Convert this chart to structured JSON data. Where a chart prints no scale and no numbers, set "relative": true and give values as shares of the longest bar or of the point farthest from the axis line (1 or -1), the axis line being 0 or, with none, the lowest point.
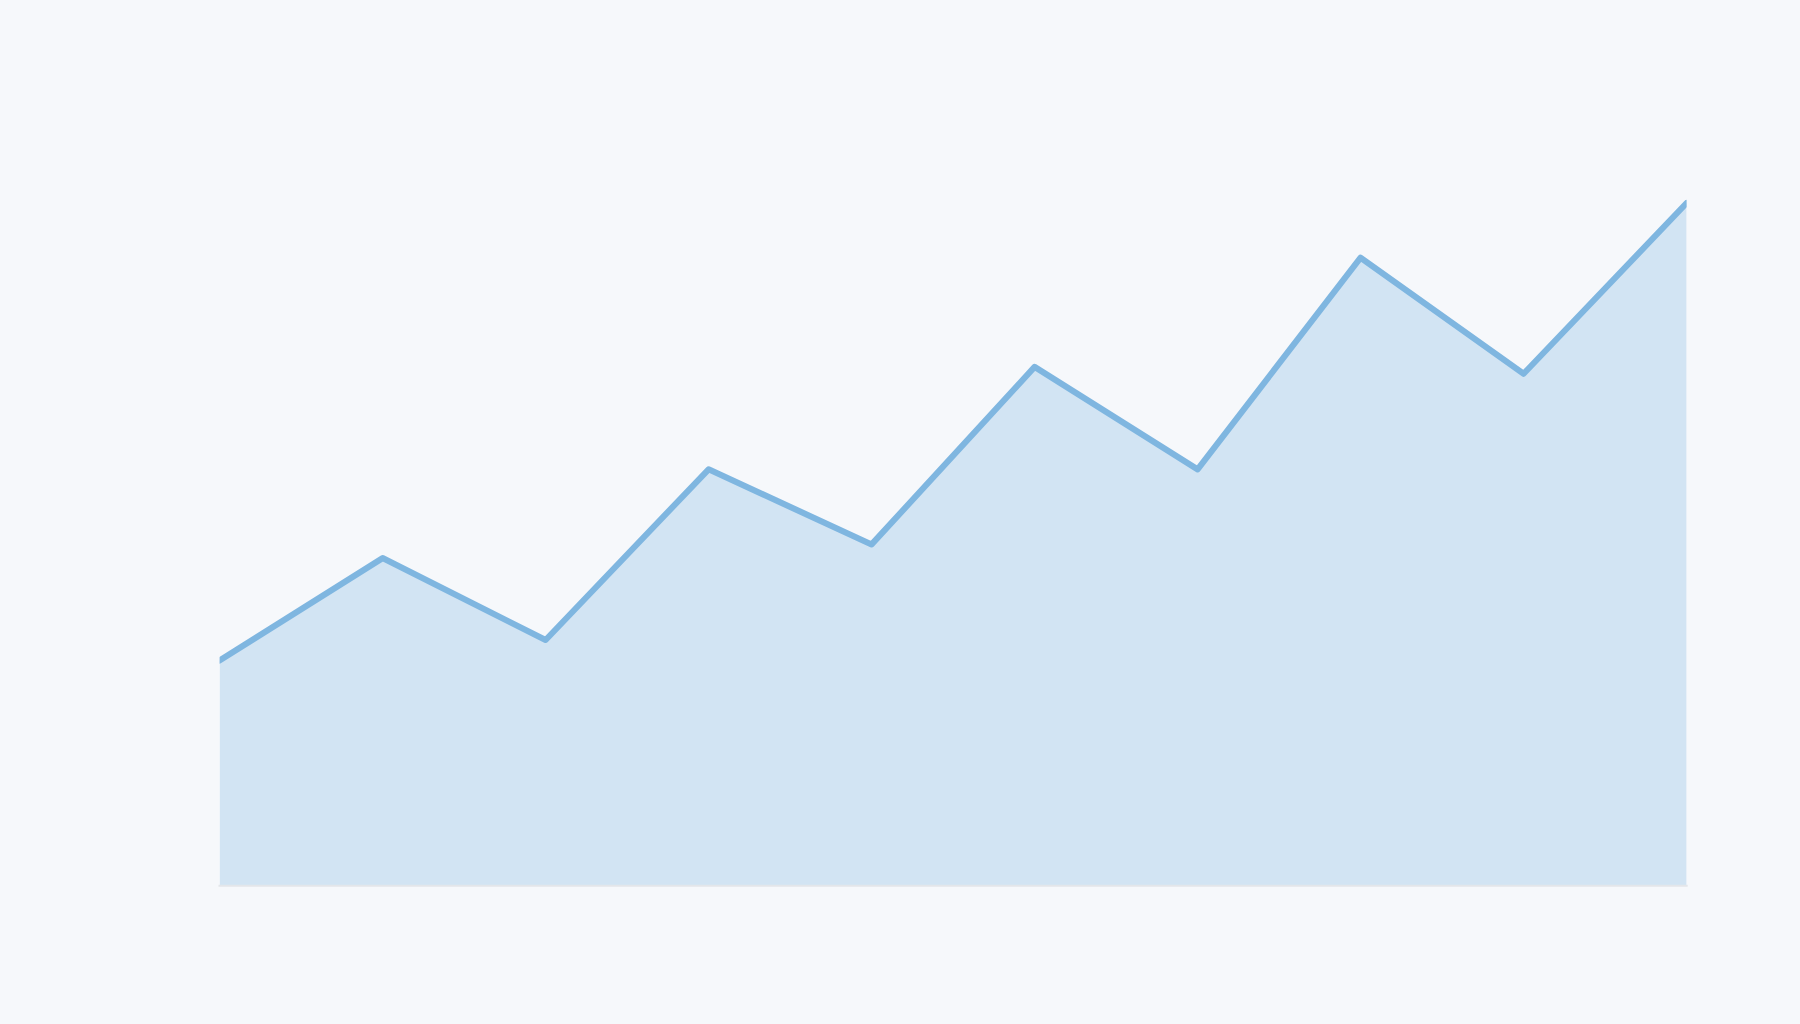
{
  "chart_data": {
    "type": "area",
    "relative": true,
    "categories": [
      null,
      null,
      null,
      null,
      null,
      null,
      null,
      null,
      null,
      null
    ],
    "series": [
      {
        "color": "#7fb6e0",
        "values": [
          0.33,
          0.48,
          0.36,
          0.61,
          0.5,
          0.76,
          0.61,
          0.92,
          0.75,
          1
        ]
      }
    ]
  }
}
